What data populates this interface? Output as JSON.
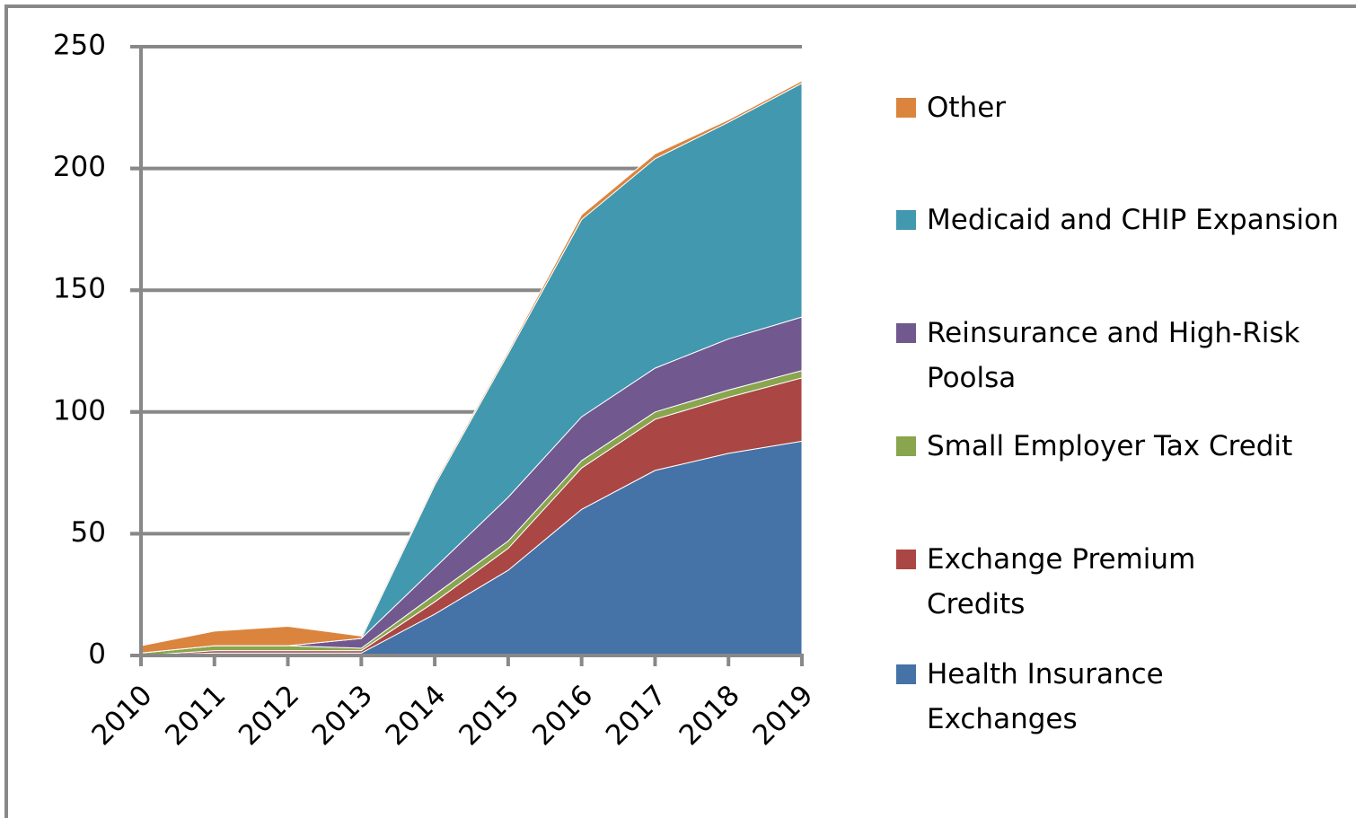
{
  "chart_data": {
    "type": "stacked_area",
    "categories": [
      "2010",
      "2011",
      "2012",
      "2013",
      "2014",
      "2015",
      "2016",
      "2017",
      "2018",
      "2019"
    ],
    "series": [
      {
        "name": "Health Insurance Exchanges",
        "color": "#4572a7",
        "values": [
          0,
          1,
          1,
          1,
          17,
          35,
          60,
          76,
          83,
          88
        ]
      },
      {
        "name": "Exchange Premium Credits",
        "color": "#aa4643",
        "values": [
          0,
          1,
          1,
          1,
          5,
          9,
          17,
          21,
          23,
          26
        ]
      },
      {
        "name": "Small Employer Tax Credit",
        "color": "#89a54e",
        "values": [
          1,
          2,
          2,
          1,
          3,
          3,
          3,
          3,
          3,
          3
        ]
      },
      {
        "name": "Reinsurance and High-Risk Poolsa",
        "color": "#71588f",
        "values": [
          0,
          0,
          0,
          4,
          11,
          18,
          18,
          18,
          21,
          22
        ]
      },
      {
        "name": "Medicaid and CHIP Expansion",
        "color": "#4198af",
        "values": [
          0,
          0,
          0,
          0,
          34,
          59,
          81,
          86,
          89,
          96
        ]
      },
      {
        "name": "Other",
        "color": "#db843d",
        "values": [
          3,
          6,
          8,
          1,
          1,
          1,
          2,
          2,
          1,
          1
        ]
      }
    ],
    "ylim": [
      0,
      250
    ],
    "yticks": [
      0,
      50,
      100,
      150,
      200,
      250
    ],
    "grid": true,
    "legend": "right"
  }
}
